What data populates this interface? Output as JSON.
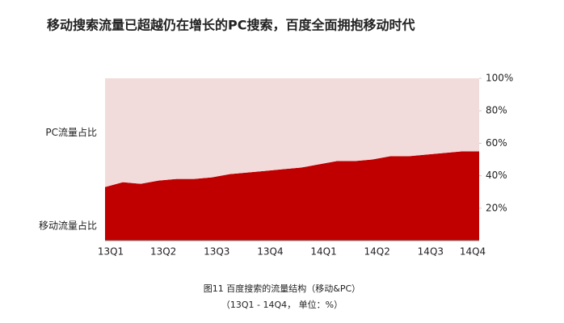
{
  "chart_data": {
    "type": "area",
    "title": "移动搜索流量已超越仍在增长的PC搜索，百度全面拥抱移动时代",
    "caption": "图11 百度搜索的流量结构（移动&PC）",
    "note": "（13Q1 - 14Q4， 单位：%）",
    "stacked": true,
    "categories": [
      "13Q1",
      null,
      null,
      "13Q2",
      null,
      null,
      "13Q3",
      null,
      null,
      "13Q4",
      null,
      null,
      "14Q1",
      null,
      null,
      "14Q2",
      null,
      null,
      "14Q3",
      null,
      null,
      "14Q4"
    ],
    "series": [
      {
        "name": "移动流量占比",
        "color": "#c00000",
        "values": [
          33,
          36,
          35,
          37,
          38,
          38,
          39,
          41,
          42,
          43,
          44,
          45,
          47,
          49,
          49,
          50,
          52,
          52,
          53,
          54,
          55,
          55
        ]
      },
      {
        "name": "PC流量占比",
        "color": "#f2dcdb",
        "values": [
          67,
          64,
          65,
          63,
          62,
          62,
          61,
          59,
          58,
          57,
          56,
          55,
          53,
          51,
          51,
          50,
          48,
          48,
          47,
          46,
          45,
          45
        ]
      }
    ],
    "ylim": [
      0,
      100
    ],
    "yticks": [
      {
        "value": 20,
        "label": "20%"
      },
      {
        "value": 40,
        "label": "40%"
      },
      {
        "value": 60,
        "label": "60%"
      },
      {
        "value": 80,
        "label": "80%"
      },
      {
        "value": 100,
        "label": "100%"
      }
    ],
    "grid": false
  }
}
